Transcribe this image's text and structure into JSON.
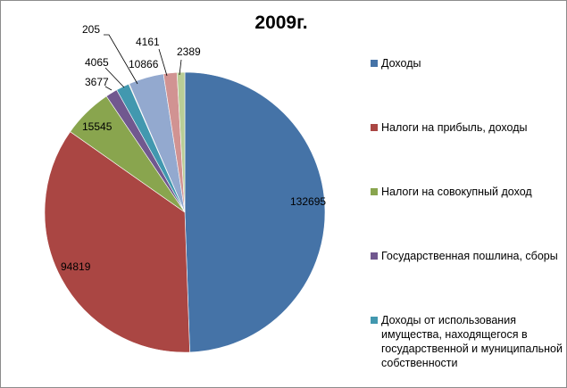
{
  "chart_data": {
    "type": "pie",
    "title": "2009г.",
    "values": [
      132695,
      94819,
      15545,
      3677,
      4065,
      205,
      10866,
      4161,
      2389
    ],
    "colors": [
      "#4573a7",
      "#aa4643",
      "#89a54e",
      "#71588f",
      "#4298af",
      "#db843d",
      "#93a9cf",
      "#d19392",
      "#b9cd96"
    ],
    "legend": [
      {
        "label": "Доходы",
        "color": "#4573a7"
      },
      {
        "label": "Налоги на прибыль, доходы",
        "color": "#aa4643"
      },
      {
        "label": "Налоги на совокупный доход",
        "color": "#89a54e"
      },
      {
        "label": "Государственная пошлина, сборы",
        "color": "#71588f"
      },
      {
        "label": "Доходы от использования имущества, находящегося в государственной и муниципальной собственности",
        "color": "#4298af"
      }
    ],
    "data_labels": [
      "132695",
      "94819",
      "15545",
      "3677",
      "4065",
      "205",
      "10866",
      "4161",
      "2389"
    ],
    "legend_position": "right"
  }
}
